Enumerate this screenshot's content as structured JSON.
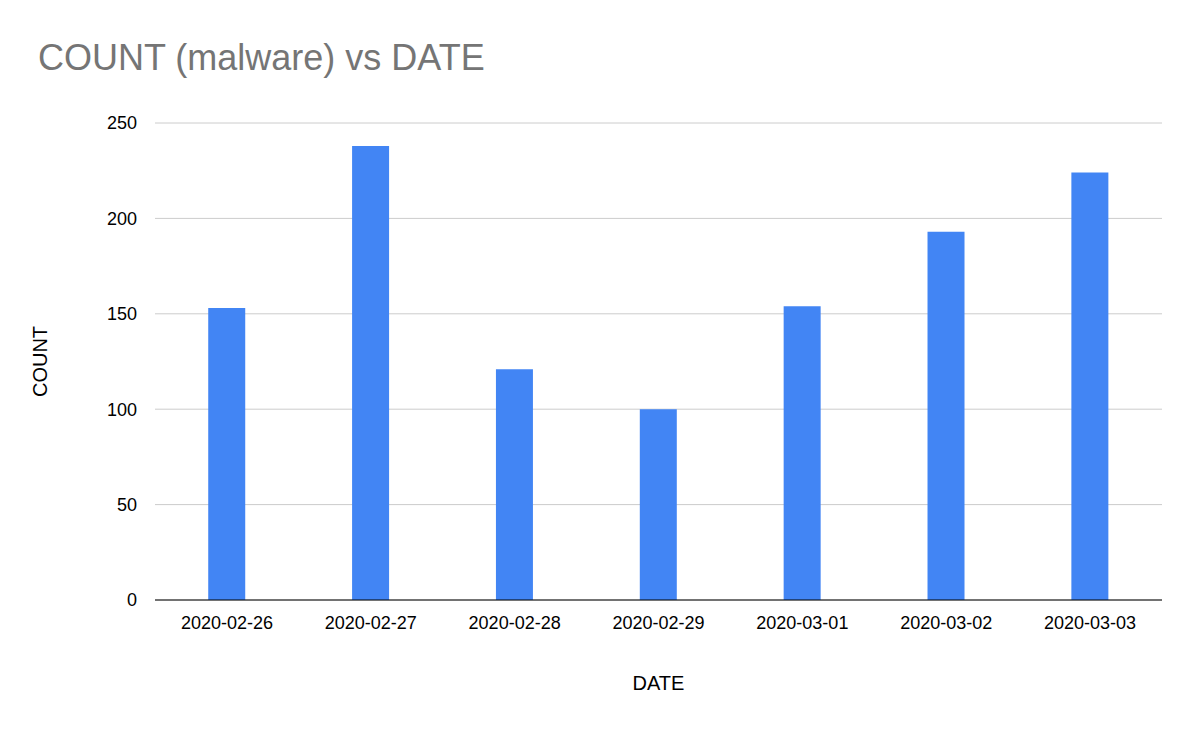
{
  "chart_data": {
    "type": "bar",
    "title": "COUNT (malware) vs DATE",
    "x_label": "DATE",
    "y_label": "COUNT",
    "categories": [
      "2020-02-26",
      "2020-02-27",
      "2020-02-28",
      "2020-02-29",
      "2020-03-01",
      "2020-03-02",
      "2020-03-03"
    ],
    "values": [
      153,
      238,
      121,
      100,
      154,
      193,
      224
    ],
    "color": "#4285f4",
    "ylim": [
      0,
      250
    ],
    "yticks": [
      0,
      50,
      100,
      150,
      200,
      250
    ],
    "grid": true
  }
}
